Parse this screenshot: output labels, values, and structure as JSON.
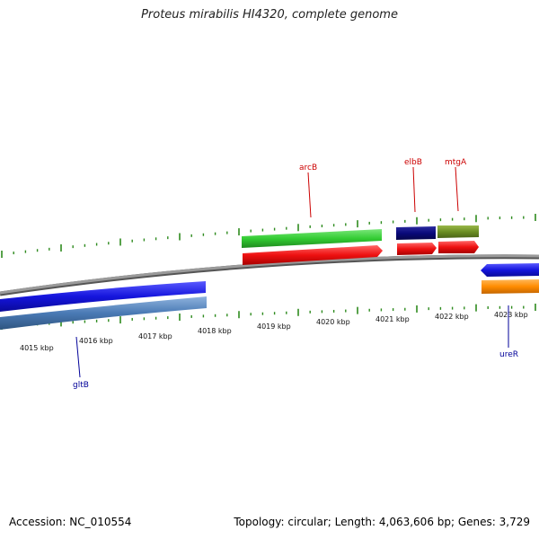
{
  "title": "Proteus mirabilis HI4320, complete genome",
  "footer": {
    "accession": "Accession: NC_010554",
    "summary": "Topology: circular; Length: 4,063,606 bp; Genes: 3,729"
  },
  "colors": {
    "backbone": "#888888",
    "ticks": "#2e8b1e",
    "forward_label": "#cc0000",
    "reverse_label": "#000099"
  },
  "scale_labels": [
    "4015 kbp",
    "4016 kbp",
    "4017 kbp",
    "4018 kbp",
    "4019 kbp",
    "4020 kbp",
    "4021 kbp",
    "4022 kbp",
    "4023 kbp"
  ],
  "features": [
    {
      "name": "arcB-green",
      "track": "outer",
      "color": "#33cc33"
    },
    {
      "name": "arcB-red",
      "track": "forward",
      "color": "#ee1111"
    },
    {
      "name": "elbB-navy",
      "track": "outer",
      "color": "#0a0a7a"
    },
    {
      "name": "elbB-red",
      "track": "forward",
      "color": "#ee1111"
    },
    {
      "name": "mtgA-olive",
      "track": "outer",
      "color": "#6b8e23"
    },
    {
      "name": "mtgA-red",
      "track": "forward",
      "color": "#ee1111"
    },
    {
      "name": "gltB-blue",
      "track": "reverse",
      "color": "#1515dd"
    },
    {
      "name": "gltB-steel",
      "track": "inner",
      "color": "#4a7ab5"
    },
    {
      "name": "ureR-blue",
      "track": "reverse",
      "color": "#1515dd"
    },
    {
      "name": "ureR-orange",
      "track": "inner",
      "color": "#ff8c00"
    }
  ],
  "gene_labels": {
    "arcB": "arcB",
    "elbB": "elbB",
    "mtgA": "mtgA",
    "gltB": "gltB",
    "ureR": "ureR"
  }
}
